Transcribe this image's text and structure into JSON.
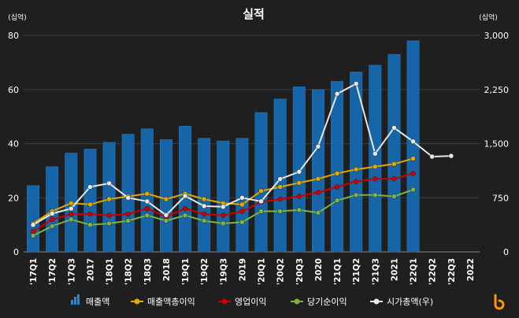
{
  "chart_data": {
    "type": "bar",
    "title": "실적",
    "y_left_label": "(십억)",
    "y_right_label": "(십억)",
    "y_left_ticks": [
      "0",
      "20",
      "40",
      "60",
      "80"
    ],
    "y_right_ticks": [
      "0",
      "750",
      "1,500",
      "2,250",
      "3,000"
    ],
    "ylim_left": [
      0,
      80
    ],
    "ylim_right": [
      0,
      3000
    ],
    "grid": true,
    "legend_position": "bottom",
    "categories": [
      "'17Q1",
      "'17Q2",
      "'17Q3",
      "2017",
      "'18Q1",
      "'18Q2",
      "'18Q3",
      "2018",
      "'19Q1",
      "'19Q2",
      "'19Q3",
      "2019",
      "'20Q1",
      "'20Q2",
      "'20Q3",
      "2020",
      "'21Q1",
      "'21Q2",
      "'21Q3",
      "2021",
      "'22Q1",
      "'22Q2",
      "'22Q3",
      "2022"
    ],
    "series": [
      {
        "name": "매출액",
        "kind": "bar",
        "axis": "left",
        "color": "#1565a8",
        "values": [
          24.5,
          31.5,
          36.5,
          38,
          40.5,
          43.5,
          45.5,
          41.5,
          46.5,
          42,
          41,
          42,
          51.5,
          56.5,
          61,
          60,
          63,
          66.5,
          69,
          73,
          78,
          null,
          null,
          null
        ]
      },
      {
        "name": "매출액총이익",
        "kind": "line",
        "axis": "left",
        "color": "#e0a800",
        "values": [
          10.5,
          15,
          18,
          17.5,
          19.5,
          20.5,
          21.5,
          19.5,
          21.5,
          19.5,
          18,
          17.5,
          22.5,
          24,
          25.5,
          27,
          29,
          30.5,
          31.5,
          32.5,
          34.5,
          null,
          null,
          null
        ]
      },
      {
        "name": "영업이익",
        "kind": "line",
        "axis": "left",
        "color": "#cc0000",
        "values": [
          7.5,
          12,
          14,
          14,
          13.5,
          14,
          16,
          13,
          16,
          14,
          13.5,
          15,
          18.5,
          19.5,
          20.5,
          22,
          24,
          26,
          27,
          27,
          29,
          null,
          null,
          null
        ]
      },
      {
        "name": "당기순이익",
        "kind": "line",
        "axis": "left",
        "color": "#7cb342",
        "values": [
          6,
          9.5,
          12,
          10,
          10.5,
          11.5,
          13.5,
          11.5,
          13.5,
          11.5,
          10.5,
          11,
          15,
          15,
          15.5,
          14.5,
          19,
          21,
          21,
          20.5,
          23,
          null,
          null,
          null
        ]
      },
      {
        "name": "시가총액(우)",
        "kind": "line",
        "axis": "right",
        "color": "#e8e8e8",
        "values": [
          375,
          530,
          600,
          900,
          950,
          750,
          700,
          510,
          775,
          635,
          625,
          750,
          700,
          1010,
          1110,
          1460,
          2190,
          2330,
          1360,
          1720,
          1530,
          1320,
          1330,
          null
        ]
      }
    ]
  }
}
